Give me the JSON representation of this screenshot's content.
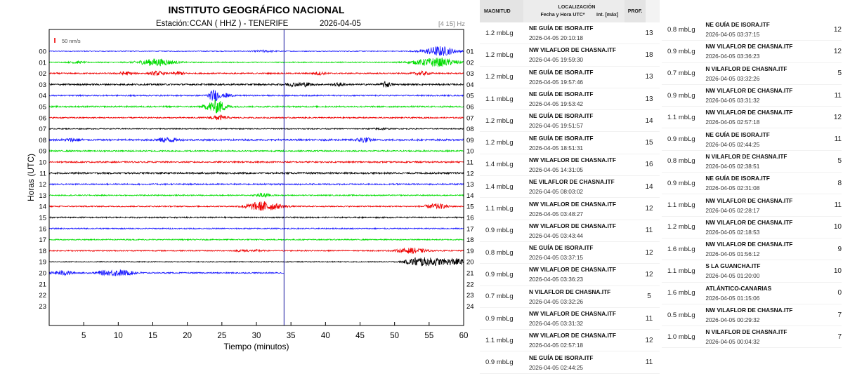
{
  "chart_data": {
    "type": "helicorder",
    "title": "INSTITUTO GEOGRÁFICO NACIONAL",
    "station_label": "Estación:",
    "station": "CCAN ( HHZ ) - TENERIFE",
    "date": "2026-04-05",
    "filter": "[4 15] Hz",
    "scale_label": "50 nm/s",
    "xlabel": "Tiempo (minutos)",
    "ylabel": "Horas (UTC)",
    "x_ticks": [
      "5",
      "10",
      "15",
      "20",
      "25",
      "30",
      "35",
      "40",
      "45",
      "50",
      "55",
      "60"
    ],
    "x_range": [
      0,
      60
    ],
    "current_time_minute": 34,
    "left_hours": [
      "00",
      "01",
      "02",
      "03",
      "04",
      "05",
      "06",
      "07",
      "08",
      "09",
      "10",
      "11",
      "12",
      "13",
      "14",
      "15",
      "16",
      "17",
      "18",
      "19",
      "20",
      "21",
      "22",
      "23"
    ],
    "right_hours": [
      "01",
      "02",
      "03",
      "04",
      "05",
      "06",
      "07",
      "08",
      "09",
      "10",
      "11",
      "12",
      "13",
      "14",
      "15",
      "16",
      "17",
      "18",
      "19",
      "20",
      "21",
      "22",
      "23",
      "24"
    ],
    "colors": [
      "#1a1aff",
      "#00dd00",
      "#ee0000",
      "#000000"
    ],
    "traces": [
      {
        "hour": 0,
        "noise": 0.55,
        "events": [
          [
            31,
            1.2,
            1.5
          ],
          [
            56.5,
            7,
            2.2
          ]
        ]
      },
      {
        "hour": 1,
        "noise": 0.7,
        "events": [
          [
            15.5,
            5,
            2.5
          ],
          [
            56,
            6,
            3
          ],
          [
            4,
            1.4,
            1
          ]
        ]
      },
      {
        "hour": 2,
        "noise": 0.9,
        "events": [
          [
            11,
            2.2,
            1
          ],
          [
            15.6,
            2.6,
            1
          ],
          [
            18.8,
            2,
            0.8
          ],
          [
            39,
            1.8,
            1
          ],
          [
            54,
            2.5,
            1
          ]
        ]
      },
      {
        "hour": 3,
        "noise": 1.1,
        "events": [
          [
            35,
            2.2,
            1
          ],
          [
            37,
            2.5,
            1
          ],
          [
            42,
            2,
            0.8
          ],
          [
            48.8,
            4,
            0.6
          ]
        ]
      },
      {
        "hour": 4,
        "noise": 0.9,
        "events": [
          [
            23.9,
            8,
            0.8
          ],
          [
            25.8,
            3,
            0.6
          ]
        ]
      },
      {
        "hour": 5,
        "noise": 1.0,
        "events": [
          [
            24.2,
            9,
            1.4
          ]
        ]
      },
      {
        "hour": 6,
        "noise": 0.9,
        "events": [
          [
            24.5,
            3,
            1.2
          ]
        ]
      },
      {
        "hour": 7,
        "noise": 0.7,
        "events": [
          [
            48,
            1.2,
            1
          ]
        ]
      },
      {
        "hour": 8,
        "noise": 1.2,
        "events": [
          [
            3.5,
            2,
            1.2
          ],
          [
            17,
            3,
            1.4
          ],
          [
            45.5,
            3.5,
            1
          ]
        ]
      },
      {
        "hour": 9,
        "noise": 1.0,
        "events": []
      },
      {
        "hour": 10,
        "noise": 1.0,
        "events": []
      },
      {
        "hour": 11,
        "noise": 1.2,
        "events": []
      },
      {
        "hour": 12,
        "noise": 1.0,
        "events": []
      },
      {
        "hour": 13,
        "noise": 0.8,
        "events": [
          [
            31,
            3,
            1
          ]
        ]
      },
      {
        "hour": 14,
        "noise": 0.8,
        "events": [
          [
            31,
            6.5,
            2.4
          ],
          [
            56,
            3.5,
            1.6
          ]
        ]
      },
      {
        "hour": 15,
        "noise": 0.9,
        "events": []
      },
      {
        "hour": 16,
        "noise": 0.8,
        "events": []
      },
      {
        "hour": 17,
        "noise": 0.8,
        "events": []
      },
      {
        "hour": 18,
        "noise": 0.8,
        "events": [
          [
            28,
            1.5,
            0.8
          ],
          [
            52.5,
            3.5,
            2
          ],
          [
            30,
            1,
            1
          ]
        ]
      },
      {
        "hour": 19,
        "noise": 0.6,
        "events": [
          [
            53,
            4,
            1.5
          ],
          [
            55.5,
            5,
            2.5
          ],
          [
            59,
            4,
            1.5
          ]
        ]
      },
      {
        "hour": 20,
        "noise": 0.9,
        "events": [
          [
            2,
            3,
            1.5
          ],
          [
            10,
            4,
            2.2
          ],
          [
            7.5,
            1.5,
            0.7
          ]
        ]
      }
    ]
  },
  "events_table": {
    "header": {
      "magnitude": "MAGNITUD",
      "location": "LOCALIZACIÓN",
      "datetime": "Fecha y Hora UTC*",
      "intensity": "Int. [máx]",
      "depth": "PROF."
    },
    "left": [
      {
        "mag": "1.2 mbLg",
        "region": "NE GUÍA DE ISORA.ITF",
        "time": "2026-04-05 20:10:18",
        "depth": "13"
      },
      {
        "mag": "1.2 mbLg",
        "region": "NW VILAFLOR DE CHASNA.ITF",
        "time": "2026-04-05 19:59:30",
        "depth": "18"
      },
      {
        "mag": "1.2 mbLg",
        "region": "NE GUÍA DE ISORA.ITF",
        "time": "2026-04-05 19:57:46",
        "depth": "13"
      },
      {
        "mag": "1.1 mbLg",
        "region": "NE GUÍA DE ISORA.ITF",
        "time": "2026-04-05 19:53:42",
        "depth": "13"
      },
      {
        "mag": "1.2 mbLg",
        "region": "NE GUÍA DE ISORA.ITF",
        "time": "2026-04-05 19:51:57",
        "depth": "14"
      },
      {
        "mag": "1.2 mbLg",
        "region": "NE GUÍA DE ISORA.ITF",
        "time": "2026-04-05 18:51:31",
        "depth": "15"
      },
      {
        "mag": "1.4 mbLg",
        "region": "NW VILAFLOR DE CHASNA.ITF",
        "time": "2026-04-05 14:31:05",
        "depth": "16"
      },
      {
        "mag": "1.4 mbLg",
        "region": "NE VILAFLOR DE CHASNA.ITF",
        "time": "2026-04-05 08:03:02",
        "depth": "14"
      },
      {
        "mag": "1.1 mbLg",
        "region": "NW VILAFLOR DE CHASNA.ITF",
        "time": "2026-04-05 03:48:27",
        "depth": "12"
      },
      {
        "mag": "0.9 mbLg",
        "region": "NW VILAFLOR DE CHASNA.ITF",
        "time": "2026-04-05 03:43:44",
        "depth": "11"
      },
      {
        "mag": "0.8 mbLg",
        "region": "NE GUÍA DE ISORA.ITF",
        "time": "2026-04-05 03:37:15",
        "depth": "12"
      },
      {
        "mag": "0.9 mbLg",
        "region": "NW VILAFLOR DE CHASNA.ITF",
        "time": "2026-04-05 03:36:23",
        "depth": "12"
      },
      {
        "mag": "0.7 mbLg",
        "region": "N VILAFLOR DE CHASNA.ITF",
        "time": "2026-04-05 03:32:26",
        "depth": "5"
      },
      {
        "mag": "0.9 mbLg",
        "region": "NW VILAFLOR DE CHASNA.ITF",
        "time": "2026-04-05 03:31:32",
        "depth": "11"
      },
      {
        "mag": "1.1 mbLg",
        "region": "NW VILAFLOR DE CHASNA.ITF",
        "time": "2026-04-05 02:57:18",
        "depth": "12"
      },
      {
        "mag": "0.9 mbLg",
        "region": "NE GUÍA DE ISORA.ITF",
        "time": "2026-04-05 02:44:25",
        "depth": "11"
      }
    ],
    "right": [
      {
        "mag": "0.8 mbLg",
        "region": "NE GUÍA DE ISORA.ITF",
        "time": "2026-04-05 03:37:15",
        "depth": "12"
      },
      {
        "mag": "0.9 mbLg",
        "region": "NW VILAFLOR DE CHASNA.ITF",
        "time": "2026-04-05 03:36:23",
        "depth": "12"
      },
      {
        "mag": "0.7 mbLg",
        "region": "N VILAFLOR DE CHASNA.ITF",
        "time": "2026-04-05 03:32:26",
        "depth": "5"
      },
      {
        "mag": "0.9 mbLg",
        "region": "NW VILAFLOR DE CHASNA.ITF",
        "time": "2026-04-05 03:31:32",
        "depth": "11"
      },
      {
        "mag": "1.1 mbLg",
        "region": "NW VILAFLOR DE CHASNA.ITF",
        "time": "2026-04-05 02:57:18",
        "depth": "12"
      },
      {
        "mag": "0.9 mbLg",
        "region": "NE GUÍA DE ISORA.ITF",
        "time": "2026-04-05 02:44:25",
        "depth": "11"
      },
      {
        "mag": "0.8 mbLg",
        "region": "N VILAFLOR DE CHASNA.ITF",
        "time": "2026-04-05 02:38:51",
        "depth": "5"
      },
      {
        "mag": "0.9 mbLg",
        "region": "NE GUÍA DE ISORA.ITF",
        "time": "2026-04-05 02:31:08",
        "depth": "8"
      },
      {
        "mag": "1.1 mbLg",
        "region": "NW VILAFLOR DE CHASNA.ITF",
        "time": "2026-04-05 02:28:17",
        "depth": "11"
      },
      {
        "mag": "1.2 mbLg",
        "region": "NW VILAFLOR DE CHASNA.ITF",
        "time": "2026-04-05 02:18:53",
        "depth": "10"
      },
      {
        "mag": "1.6 mbLg",
        "region": "NW VILAFLOR DE CHASNA.ITF",
        "time": "2026-04-05 01:56:12",
        "depth": "9"
      },
      {
        "mag": "1.1 mbLg",
        "region": "S LA GUANCHA.ITF",
        "time": "2026-04-05 01:20:00",
        "depth": "10"
      },
      {
        "mag": "1.6 mbLg",
        "region": "ATLÁNTICO-CANARIAS",
        "time": "2026-04-05 01:15:06",
        "depth": "0"
      },
      {
        "mag": "0.5 mbLg",
        "region": "NW VILAFLOR DE CHASNA.ITF",
        "time": "2026-04-05 00:29:32",
        "depth": "7"
      },
      {
        "mag": "1.0 mbLg",
        "region": "N VILAFLOR DE CHASNA.ITF",
        "time": "2026-04-05 00:04:32",
        "depth": "7"
      }
    ]
  }
}
